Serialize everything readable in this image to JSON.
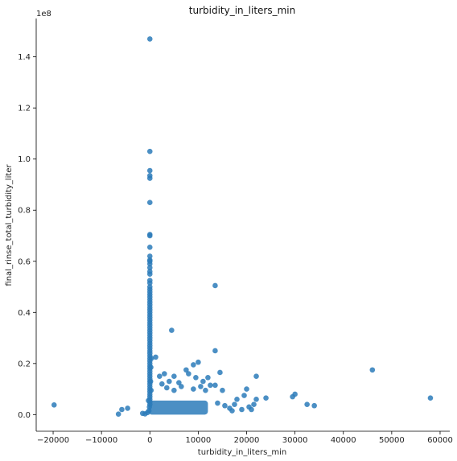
{
  "chart_data": {
    "type": "scatter",
    "title": "turbidity_in_liters_min",
    "xlabel": "turbidity_in_liters_min",
    "ylabel": "final_rinse_total_turbidity_liter",
    "y_offset_label": "1e8",
    "xlim": [
      -23500,
      62000
    ],
    "ylim": [
      -6500000,
      155000000
    ],
    "x_ticks": [
      -20000,
      -10000,
      0,
      10000,
      20000,
      30000,
      40000,
      50000,
      60000
    ],
    "x_tick_labels": [
      "−20000",
      "−10000",
      "0",
      "10000",
      "20000",
      "30000",
      "40000",
      "50000",
      "60000"
    ],
    "y_ticks": [
      0,
      20000000,
      40000000,
      60000000,
      80000000,
      100000000,
      120000000,
      140000000
    ],
    "y_tick_labels": [
      "0.0",
      "0.2",
      "0.4",
      "0.6",
      "0.8",
      "1.0",
      "1.2",
      "1.4"
    ],
    "grid": false,
    "legend": "none",
    "color": "#2b7bba",
    "series": [
      {
        "points": [
          [
            0,
            147000000
          ],
          [
            0,
            103000000
          ],
          [
            0,
            95500000
          ],
          [
            0,
            93500000
          ],
          [
            0,
            92500000
          ],
          [
            0,
            83000000
          ],
          [
            0,
            70500000
          ],
          [
            0,
            70000000
          ],
          [
            0,
            65500000
          ],
          [
            0,
            62000000
          ],
          [
            0,
            60500000
          ],
          [
            0,
            60000000
          ],
          [
            0,
            59000000
          ],
          [
            0,
            57500000
          ],
          [
            0,
            56000000
          ],
          [
            0,
            55000000
          ],
          [
            0,
            52500000
          ],
          [
            0,
            51500000
          ],
          [
            0,
            50000000
          ],
          [
            0,
            49000000
          ],
          [
            0,
            48000000
          ],
          [
            0,
            47000000
          ],
          [
            0,
            46000000
          ],
          [
            0,
            45000000
          ],
          [
            0,
            44000000
          ],
          [
            0,
            43000000
          ],
          [
            0,
            42000000
          ],
          [
            0,
            41000000
          ],
          [
            0,
            40000000
          ],
          [
            0,
            39000000
          ],
          [
            0,
            38000000
          ],
          [
            0,
            37000000
          ],
          [
            0,
            36000000
          ],
          [
            0,
            35000000
          ],
          [
            0,
            34000000
          ],
          [
            0,
            33000000
          ],
          [
            0,
            32000000
          ],
          [
            0,
            31000000
          ],
          [
            0,
            30000000
          ],
          [
            0,
            29000000
          ],
          [
            0,
            28000000
          ],
          [
            0,
            27000000
          ],
          [
            0,
            26000000
          ],
          [
            0,
            25000000
          ],
          [
            0,
            24000000
          ],
          [
            0,
            23000000
          ],
          [
            0,
            22000000
          ],
          [
            0,
            21000000
          ],
          [
            0,
            20000000
          ],
          [
            0,
            19000000
          ],
          [
            0,
            18000000
          ],
          [
            0,
            17000000
          ],
          [
            0,
            16000000
          ],
          [
            0,
            15000000
          ],
          [
            0,
            14000000
          ],
          [
            0,
            13000000
          ],
          [
            0,
            12000000
          ],
          [
            0,
            11000000
          ],
          [
            0,
            10000000
          ],
          [
            0,
            9000000
          ],
          [
            0,
            8000000
          ],
          [
            0,
            7000000
          ],
          [
            0,
            6000000
          ],
          [
            0,
            5000000
          ],
          [
            0,
            4000000
          ],
          [
            200,
            18500000
          ],
          [
            300,
            22000000
          ],
          [
            150,
            13000000
          ],
          [
            250,
            9500000
          ],
          [
            13500,
            50500000
          ],
          [
            4500,
            33000000
          ],
          [
            13500,
            25000000
          ],
          [
            1200,
            22500000
          ],
          [
            10000,
            20500000
          ],
          [
            9000,
            19500000
          ],
          [
            7500,
            17500000
          ],
          [
            8000,
            16000000
          ],
          [
            3000,
            16000000
          ],
          [
            2000,
            15000000
          ],
          [
            5000,
            15000000
          ],
          [
            9500,
            14500000
          ],
          [
            11000,
            13000000
          ],
          [
            12000,
            14500000
          ],
          [
            14500,
            16500000
          ],
          [
            22000,
            15000000
          ],
          [
            12500,
            11500000
          ],
          [
            13500,
            11500000
          ],
          [
            11500,
            9500000
          ],
          [
            15000,
            9500000
          ],
          [
            4000,
            13000000
          ],
          [
            6000,
            12500000
          ],
          [
            2500,
            12000000
          ],
          [
            3500,
            10500000
          ],
          [
            5000,
            9500000
          ],
          [
            6500,
            11000000
          ],
          [
            10500,
            11000000
          ],
          [
            9000,
            10000000
          ],
          [
            14000,
            4500000
          ],
          [
            15500,
            3500000
          ],
          [
            16500,
            2500000
          ],
          [
            17500,
            4000000
          ],
          [
            18000,
            6000000
          ],
          [
            19500,
            7500000
          ],
          [
            20000,
            10000000
          ],
          [
            21500,
            4000000
          ],
          [
            22000,
            6000000
          ],
          [
            24000,
            6500000
          ],
          [
            19000,
            2000000
          ],
          [
            20500,
            3000000
          ],
          [
            17000,
            1500000
          ],
          [
            21000,
            2000000
          ],
          [
            29500,
            7000000
          ],
          [
            30000,
            8000000
          ],
          [
            32500,
            4000000
          ],
          [
            34000,
            3500000
          ],
          [
            46000,
            17500000
          ],
          [
            58000,
            6500000
          ],
          [
            -19800,
            3800000
          ],
          [
            -6500,
            200000
          ],
          [
            -5800,
            2000000
          ],
          [
            -4600,
            2500000
          ],
          [
            -1500,
            500000
          ],
          [
            -1000,
            300000
          ],
          [
            -500,
            800000
          ],
          [
            -300,
            5500000
          ],
          [
            -200,
            1500000
          ],
          [
            -100,
            3000000
          ]
        ]
      }
    ]
  }
}
